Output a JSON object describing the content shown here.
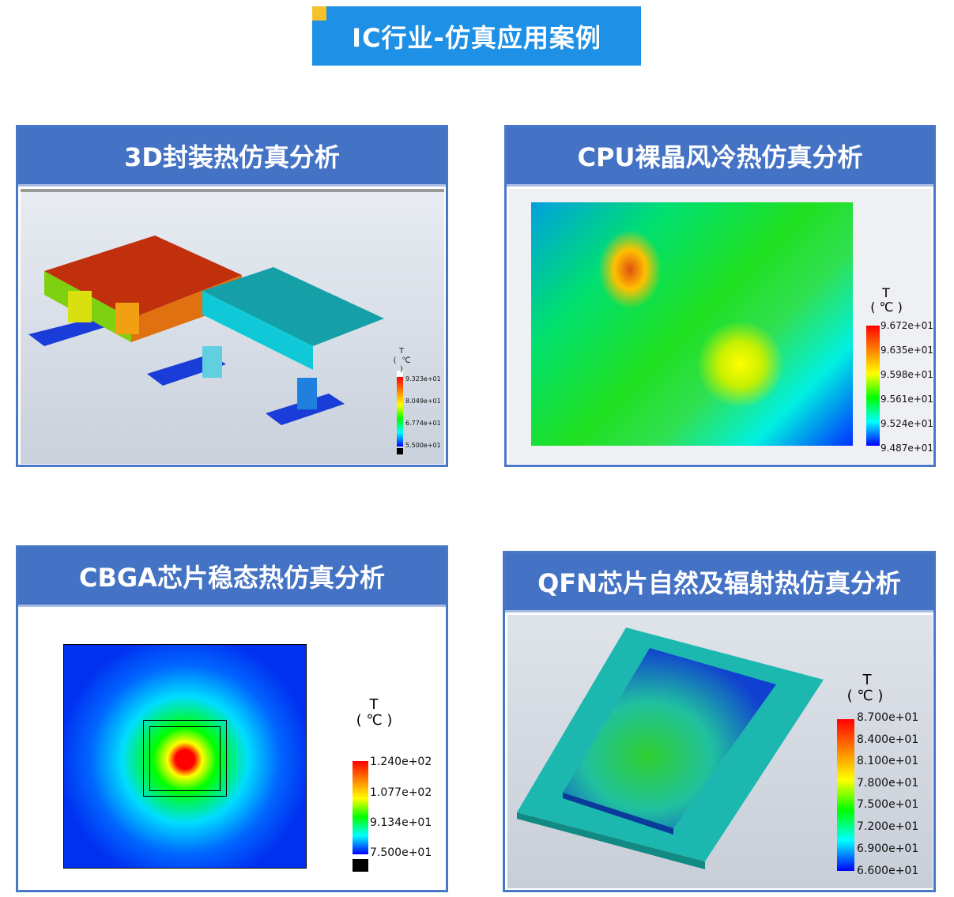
{
  "banner": {
    "title": "IC行业-仿真应用案例",
    "accent": "#f5c12c",
    "color": "#1e90e6"
  },
  "panels": [
    {
      "title": "3D封装热仿真分析",
      "legend": {
        "var": "T",
        "unit": "( ℃ )",
        "labels": [
          "9.323e+01",
          "8.049e+01",
          "6.774e+01",
          "5.500e+01"
        ]
      }
    },
    {
      "title": "CPU裸晶风冷热仿真分析",
      "legend": {
        "var": "T",
        "unit": "( ℃ )",
        "labels": [
          "9.672e+01",
          "9.635e+01",
          "9.598e+01",
          "9.561e+01",
          "9.524e+01",
          "9.487e+01"
        ]
      }
    },
    {
      "title": "CBGA芯片稳态热仿真分析",
      "legend": {
        "var": "T",
        "unit": "( ℃ )",
        "labels": [
          "1.240e+02",
          "1.077e+02",
          "9.134e+01",
          "7.500e+01"
        ]
      }
    },
    {
      "title": "QFN芯片自然及辐射热仿真分析",
      "legend": {
        "var": "T",
        "unit": "( ℃ )",
        "labels": [
          "8.700e+01",
          "8.400e+01",
          "8.100e+01",
          "7.800e+01",
          "7.500e+01",
          "7.200e+01",
          "6.900e+01",
          "6.600e+01"
        ]
      }
    }
  ]
}
